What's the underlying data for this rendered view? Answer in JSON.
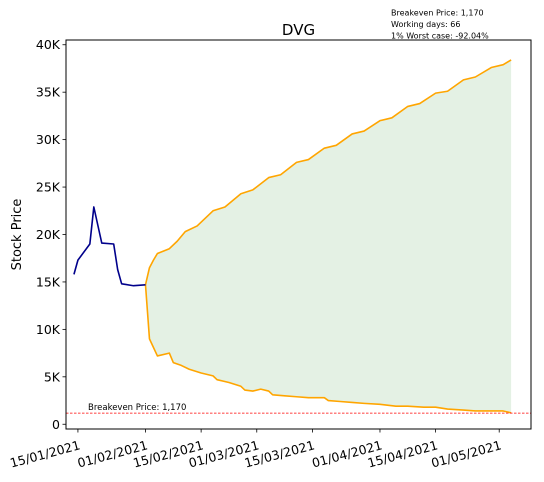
{
  "chart_data": {
    "type": "line",
    "title": "DVG",
    "ylabel": "Stock Price",
    "xlabel": "",
    "ylim": [
      -500,
      40500
    ],
    "xlim": [
      "2021-01-12",
      "2021-05-09"
    ],
    "grid": false,
    "yticks": [
      0,
      5000,
      10000,
      15000,
      20000,
      25000,
      30000,
      35000,
      40000
    ],
    "ytick_labels": [
      "0",
      "5K",
      "10K",
      "15K",
      "20K",
      "25K",
      "30K",
      "35K",
      "40K"
    ],
    "xticks": [
      "2021-01-15",
      "2021-02-01",
      "2021-02-15",
      "2021-03-01",
      "2021-03-15",
      "2021-04-01",
      "2021-04-15",
      "2021-05-01"
    ],
    "xtick_labels": [
      "15/01/2021",
      "01/02/2021",
      "15/02/2021",
      "01/03/2021",
      "15/03/2021",
      "01/04/2021",
      "15/04/2021",
      "01/05/2021"
    ],
    "historical": {
      "color": "#00008b",
      "points": [
        [
          "2021-01-14",
          15800
        ],
        [
          "2021-01-15",
          17300
        ],
        [
          "2021-01-18",
          19000
        ],
        [
          "2021-01-19",
          22900
        ],
        [
          "2021-01-21",
          19100
        ],
        [
          "2021-01-24",
          19000
        ],
        [
          "2021-01-25",
          16300
        ],
        [
          "2021-01-26",
          14800
        ],
        [
          "2021-01-29",
          14600
        ],
        [
          "2021-02-01",
          14700
        ]
      ]
    },
    "upper": {
      "color": "#ffa500",
      "points": [
        [
          "2021-02-01",
          14700
        ],
        [
          "2021-02-02",
          16500
        ],
        [
          "2021-02-03",
          17300
        ],
        [
          "2021-02-04",
          18000
        ],
        [
          "2021-02-07",
          18500
        ],
        [
          "2021-02-09",
          19300
        ],
        [
          "2021-02-11",
          20300
        ],
        [
          "2021-02-14",
          20900
        ],
        [
          "2021-02-18",
          22500
        ],
        [
          "2021-02-21",
          22900
        ],
        [
          "2021-02-25",
          24300
        ],
        [
          "2021-02-28",
          24700
        ],
        [
          "2021-03-04",
          26000
        ],
        [
          "2021-03-07",
          26300
        ],
        [
          "2021-03-11",
          27600
        ],
        [
          "2021-03-14",
          27900
        ],
        [
          "2021-03-18",
          29100
        ],
        [
          "2021-03-21",
          29400
        ],
        [
          "2021-03-25",
          30600
        ],
        [
          "2021-03-28",
          30900
        ],
        [
          "2021-04-01",
          32000
        ],
        [
          "2021-04-04",
          32300
        ],
        [
          "2021-04-08",
          33500
        ],
        [
          "2021-04-11",
          33800
        ],
        [
          "2021-04-15",
          34900
        ],
        [
          "2021-04-18",
          35100
        ],
        [
          "2021-04-22",
          36300
        ],
        [
          "2021-04-25",
          36600
        ],
        [
          "2021-04-29",
          37600
        ],
        [
          "2021-05-02",
          37900
        ],
        [
          "2021-05-04",
          38400
        ]
      ]
    },
    "lower": {
      "color": "#ffa500",
      "points": [
        [
          "2021-02-01",
          14700
        ],
        [
          "2021-02-02",
          9000
        ],
        [
          "2021-02-04",
          7200
        ],
        [
          "2021-02-07",
          7500
        ],
        [
          "2021-02-08",
          6500
        ],
        [
          "2021-02-10",
          6200
        ],
        [
          "2021-02-12",
          5800
        ],
        [
          "2021-02-15",
          5400
        ],
        [
          "2021-02-18",
          5100
        ],
        [
          "2021-02-19",
          4700
        ],
        [
          "2021-02-22",
          4400
        ],
        [
          "2021-02-25",
          4000
        ],
        [
          "2021-02-26",
          3600
        ],
        [
          "2021-02-28",
          3500
        ],
        [
          "2021-03-02",
          3700
        ],
        [
          "2021-03-04",
          3500
        ],
        [
          "2021-03-05",
          3100
        ],
        [
          "2021-03-08",
          3000
        ],
        [
          "2021-03-11",
          2900
        ],
        [
          "2021-03-14",
          2800
        ],
        [
          "2021-03-18",
          2800
        ],
        [
          "2021-03-19",
          2500
        ],
        [
          "2021-03-22",
          2400
        ],
        [
          "2021-03-25",
          2300
        ],
        [
          "2021-03-28",
          2200
        ],
        [
          "2021-04-01",
          2100
        ],
        [
          "2021-04-05",
          1900
        ],
        [
          "2021-04-08",
          1900
        ],
        [
          "2021-04-12",
          1800
        ],
        [
          "2021-04-15",
          1800
        ],
        [
          "2021-04-18",
          1600
        ],
        [
          "2021-04-22",
          1500
        ],
        [
          "2021-04-25",
          1400
        ],
        [
          "2021-04-28",
          1400
        ],
        [
          "2021-05-02",
          1400
        ],
        [
          "2021-05-04",
          1200
        ]
      ]
    },
    "band_fill": "#e4f1e4",
    "breakeven": {
      "value": 1170,
      "color": "#ff0000",
      "style": "dashed",
      "label": "Breakeven Price: 1,170"
    },
    "annotations": [
      "Breakeven Price: 1,170",
      "Working days: 66",
      "1% Worst case: -92.04%"
    ]
  }
}
